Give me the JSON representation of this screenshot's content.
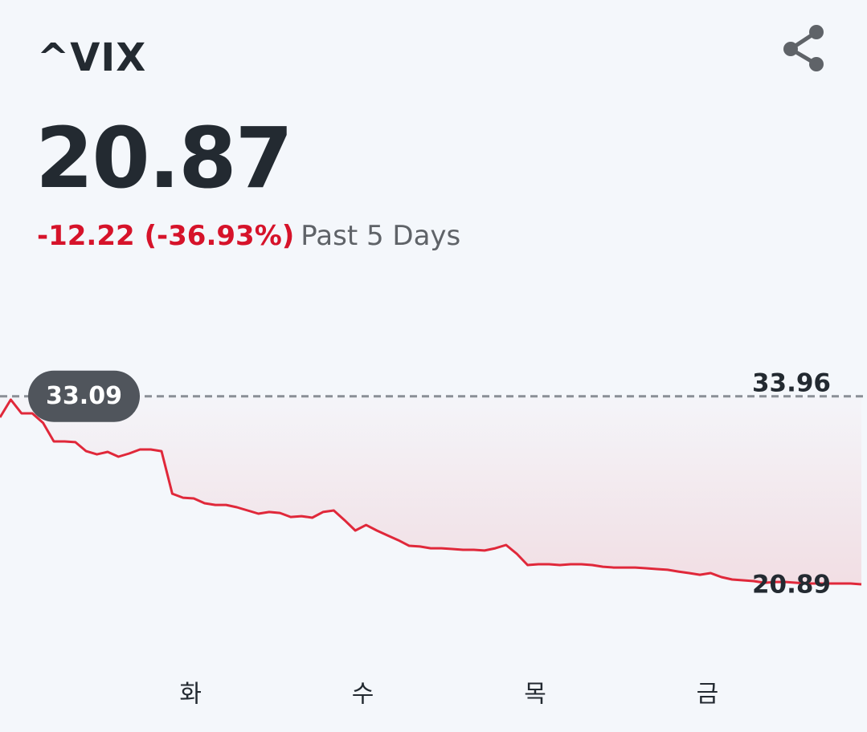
{
  "header": {
    "symbol": "^VIX",
    "price": "20.87",
    "change": "-12.22 (-36.93%)",
    "period": "Past 5 Days"
  },
  "chart_data": {
    "type": "line",
    "categories": [
      null,
      null,
      null,
      null,
      null,
      null,
      null,
      null,
      null,
      null,
      null,
      null,
      null,
      null,
      null,
      null,
      null,
      null,
      "화",
      null,
      null,
      null,
      null,
      null,
      null,
      null,
      null,
      null,
      null,
      null,
      null,
      null,
      null,
      null,
      "수",
      null,
      null,
      null,
      null,
      null,
      null,
      null,
      null,
      null,
      null,
      null,
      null,
      null,
      null,
      null,
      "목",
      null,
      null,
      null,
      null,
      null,
      null,
      null,
      null,
      null,
      null,
      null,
      null,
      null,
      null,
      null,
      "금",
      null,
      null,
      null,
      null,
      null,
      null,
      null,
      null,
      null,
      null,
      null,
      null,
      null,
      null
    ],
    "values": [
      31.72,
      32.87,
      31.98,
      31.98,
      31.36,
      30.16,
      30.16,
      30.11,
      29.53,
      29.32,
      29.48,
      29.17,
      29.38,
      29.64,
      29.64,
      29.53,
      26.77,
      26.51,
      26.46,
      26.15,
      26.04,
      26.04,
      25.89,
      25.68,
      25.47,
      25.58,
      25.52,
      25.26,
      25.31,
      25.21,
      25.58,
      25.68,
      25.05,
      24.38,
      24.74,
      24.38,
      24.06,
      23.75,
      23.39,
      23.34,
      23.23,
      23.23,
      23.18,
      23.13,
      23.13,
      23.08,
      23.23,
      23.44,
      22.87,
      22.14,
      22.19,
      22.19,
      22.14,
      22.19,
      22.19,
      22.14,
      22.03,
      21.98,
      21.98,
      21.98,
      21.93,
      21.88,
      21.83,
      21.72,
      21.62,
      21.51,
      21.62,
      21.36,
      21.2,
      21.15,
      21.1,
      20.99,
      21.04,
      21.04,
      20.99,
      20.94,
      20.94,
      20.94,
      20.94,
      20.94,
      20.89
    ],
    "color": "#e0283a",
    "reference": 33.09,
    "ylim": [
      20.89,
      33.96
    ],
    "yticks": [
      20.89,
      33.96
    ]
  }
}
